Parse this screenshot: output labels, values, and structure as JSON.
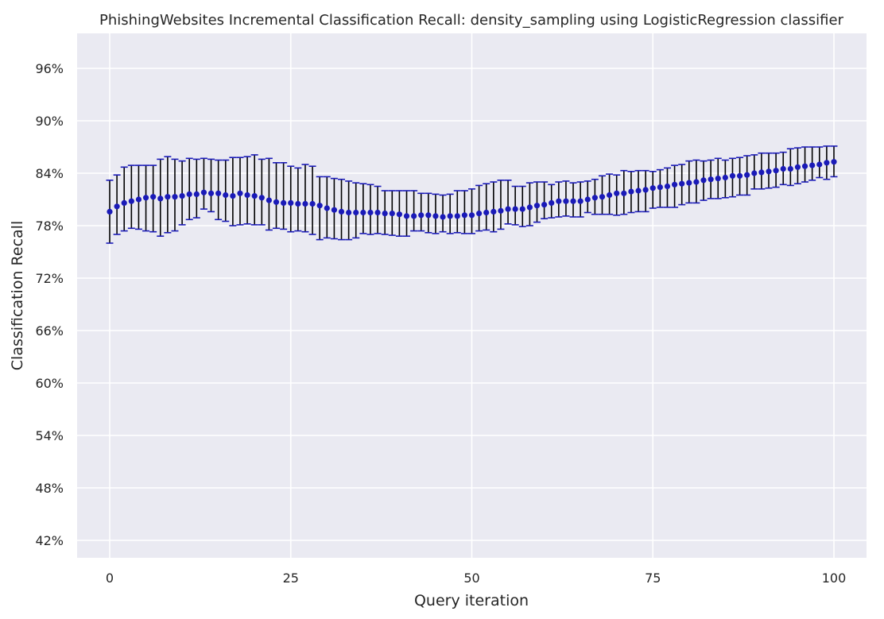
{
  "chart_data": {
    "type": "scatter",
    "title": "PhishingWebsites Incremental Classification Recall: density_sampling using LogisticRegression classifier",
    "xlabel": "Query iteration",
    "ylabel": "Classification Recall",
    "xlim": [
      -4.5,
      104.5
    ],
    "ylim": [
      0.4,
      1.0
    ],
    "xticks": [
      0,
      25,
      50,
      75,
      100
    ],
    "xtick_labels": [
      "0",
      "25",
      "50",
      "75",
      "100"
    ],
    "yticks": [
      0.42,
      0.48,
      0.54,
      0.6,
      0.66,
      0.72,
      0.78,
      0.84,
      0.9,
      0.96
    ],
    "ytick_labels": [
      "42%",
      "48%",
      "54%",
      "60%",
      "66%",
      "72%",
      "78%",
      "84%",
      "90%",
      "96%"
    ],
    "grid": true,
    "legend": "none",
    "colors": {
      "background": "#eaeaf2",
      "grid": "#ffffff",
      "marker": "#1a1ab8",
      "errorbar": "#000000",
      "caps": "#1a1ab8"
    },
    "x": [
      0,
      1,
      2,
      3,
      4,
      5,
      6,
      7,
      8,
      9,
      10,
      11,
      12,
      13,
      14,
      15,
      16,
      17,
      18,
      19,
      20,
      21,
      22,
      23,
      24,
      25,
      26,
      27,
      28,
      29,
      30,
      31,
      32,
      33,
      34,
      35,
      36,
      37,
      38,
      39,
      40,
      41,
      42,
      43,
      44,
      45,
      46,
      47,
      48,
      49,
      50,
      51,
      52,
      53,
      54,
      55,
      56,
      57,
      58,
      59,
      60,
      61,
      62,
      63,
      64,
      65,
      66,
      67,
      68,
      69,
      70,
      71,
      72,
      73,
      74,
      75,
      76,
      77,
      78,
      79,
      80,
      81,
      82,
      83,
      84,
      85,
      86,
      87,
      88,
      89,
      90,
      91,
      92,
      93,
      94,
      95,
      96,
      97,
      98,
      99,
      100
    ],
    "series": [
      {
        "values": [
          0.796,
          0.802,
          0.806,
          0.808,
          0.81,
          0.812,
          0.813,
          0.811,
          0.813,
          0.813,
          0.814,
          0.816,
          0.816,
          0.818,
          0.817,
          0.817,
          0.815,
          0.814,
          0.817,
          0.815,
          0.814,
          0.812,
          0.809,
          0.807,
          0.806,
          0.806,
          0.805,
          0.805,
          0.805,
          0.803,
          0.8,
          0.798,
          0.796,
          0.795,
          0.795,
          0.795,
          0.795,
          0.795,
          0.794,
          0.794,
          0.793,
          0.791,
          0.791,
          0.792,
          0.792,
          0.791,
          0.79,
          0.791,
          0.791,
          0.792,
          0.792,
          0.794,
          0.795,
          0.796,
          0.797,
          0.799,
          0.799,
          0.799,
          0.801,
          0.803,
          0.804,
          0.806,
          0.808,
          0.808,
          0.808,
          0.808,
          0.81,
          0.812,
          0.813,
          0.815,
          0.817,
          0.817,
          0.819,
          0.82,
          0.821,
          0.823,
          0.824,
          0.825,
          0.827,
          0.828,
          0.829,
          0.83,
          0.832,
          0.833,
          0.834,
          0.835,
          0.837,
          0.837,
          0.838,
          0.84,
          0.841,
          0.842,
          0.843,
          0.845,
          0.845,
          0.847,
          0.848,
          0.849,
          0.85,
          0.852,
          0.853
        ],
        "err_low": [
          0.76,
          0.77,
          0.774,
          0.777,
          0.776,
          0.774,
          0.773,
          0.768,
          0.772,
          0.774,
          0.781,
          0.787,
          0.789,
          0.799,
          0.796,
          0.787,
          0.785,
          0.78,
          0.781,
          0.782,
          0.781,
          0.781,
          0.775,
          0.777,
          0.776,
          0.773,
          0.774,
          0.773,
          0.77,
          0.764,
          0.766,
          0.765,
          0.764,
          0.764,
          0.766,
          0.771,
          0.77,
          0.771,
          0.77,
          0.769,
          0.768,
          0.768,
          0.774,
          0.774,
          0.772,
          0.771,
          0.773,
          0.771,
          0.772,
          0.771,
          0.771,
          0.774,
          0.775,
          0.773,
          0.776,
          0.782,
          0.781,
          0.779,
          0.78,
          0.784,
          0.788,
          0.789,
          0.79,
          0.791,
          0.79,
          0.79,
          0.795,
          0.793,
          0.793,
          0.793,
          0.792,
          0.793,
          0.795,
          0.796,
          0.796,
          0.8,
          0.801,
          0.801,
          0.801,
          0.804,
          0.806,
          0.806,
          0.809,
          0.811,
          0.811,
          0.812,
          0.813,
          0.815,
          0.815,
          0.822,
          0.822,
          0.823,
          0.824,
          0.827,
          0.826,
          0.828,
          0.83,
          0.832,
          0.835,
          0.833,
          0.836
        ],
        "err_high": [
          0.832,
          0.838,
          0.847,
          0.849,
          0.849,
          0.849,
          0.849,
          0.856,
          0.859,
          0.856,
          0.854,
          0.857,
          0.856,
          0.857,
          0.856,
          0.855,
          0.855,
          0.858,
          0.858,
          0.859,
          0.861,
          0.856,
          0.857,
          0.852,
          0.852,
          0.848,
          0.846,
          0.85,
          0.848,
          0.836,
          0.836,
          0.834,
          0.833,
          0.831,
          0.829,
          0.828,
          0.827,
          0.825,
          0.82,
          0.82,
          0.82,
          0.82,
          0.82,
          0.817,
          0.817,
          0.816,
          0.815,
          0.816,
          0.82,
          0.82,
          0.822,
          0.826,
          0.828,
          0.83,
          0.832,
          0.832,
          0.825,
          0.825,
          0.829,
          0.83,
          0.83,
          0.827,
          0.83,
          0.831,
          0.829,
          0.83,
          0.831,
          0.833,
          0.837,
          0.839,
          0.838,
          0.843,
          0.842,
          0.843,
          0.843,
          0.842,
          0.844,
          0.846,
          0.849,
          0.85,
          0.854,
          0.855,
          0.854,
          0.855,
          0.857,
          0.855,
          0.857,
          0.858,
          0.86,
          0.861,
          0.863,
          0.863,
          0.863,
          0.864,
          0.868,
          0.869,
          0.87,
          0.87,
          0.87,
          0.871,
          0.871
        ]
      }
    ]
  }
}
